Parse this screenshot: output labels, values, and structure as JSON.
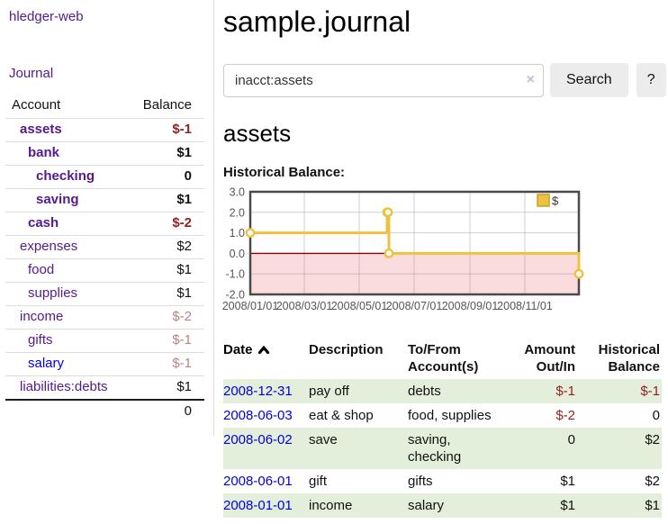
{
  "sidebar": {
    "brand": "hledger-web",
    "journal_link": "Journal",
    "accounts_table": {
      "headers": {
        "account": "Account",
        "balance": "Balance"
      },
      "rows": [
        {
          "account": "assets",
          "balance": "$-1",
          "indent": 1,
          "bold": true,
          "balance_tone": "negative-dark",
          "link_tone": "purple"
        },
        {
          "account": "bank",
          "balance": "$1",
          "indent": 2,
          "bold": true,
          "balance_tone": "normal",
          "link_tone": "purple"
        },
        {
          "account": "checking",
          "balance": "0",
          "indent": 3,
          "bold": true,
          "balance_tone": "normal",
          "link_tone": "purple"
        },
        {
          "account": "saving",
          "balance": "$1",
          "indent": 3,
          "bold": true,
          "balance_tone": "normal",
          "link_tone": "purple"
        },
        {
          "account": "cash",
          "balance": "$-2",
          "indent": 2,
          "bold": true,
          "balance_tone": "negative-dark",
          "link_tone": "purple"
        },
        {
          "account": "expenses",
          "balance": "$2",
          "indent": 1,
          "bold": false,
          "balance_tone": "normal",
          "link_tone": "purple"
        },
        {
          "account": "food",
          "balance": "$1",
          "indent": 2,
          "bold": false,
          "balance_tone": "normal",
          "link_tone": "purple"
        },
        {
          "account": "supplies",
          "balance": "$1",
          "indent": 2,
          "bold": false,
          "balance_tone": "normal",
          "link_tone": "purple"
        },
        {
          "account": "income",
          "balance": "$-2",
          "indent": 1,
          "bold": false,
          "balance_tone": "negative-light",
          "link_tone": "purple"
        },
        {
          "account": "gifts",
          "balance": "$-1",
          "indent": 2,
          "bold": false,
          "balance_tone": "negative-light",
          "link_tone": "purple"
        },
        {
          "account": "salary",
          "balance": "$-1",
          "indent": 2,
          "bold": false,
          "balance_tone": "negative-light",
          "link_tone": "blue"
        },
        {
          "account": "liabilities:debts",
          "balance": "$1",
          "indent": 1,
          "bold": false,
          "balance_tone": "normal",
          "link_tone": "purple"
        }
      ],
      "total": "0"
    }
  },
  "main": {
    "title": "sample.journal",
    "search": {
      "value": "inacct:assets",
      "clear_glyph": "×",
      "clear_icon": "clear-icon",
      "search_button": "Search",
      "help_button": "?"
    },
    "account_heading": "assets",
    "chart_heading": "Historical Balance:"
  },
  "chart_data": {
    "type": "line",
    "title": "Historical Balance:",
    "series": [
      {
        "name": "$",
        "color": "#edc240",
        "steps": true,
        "points": [
          {
            "date": "2008-01-01",
            "value": 1
          },
          {
            "date": "2008-06-01",
            "value": 2
          },
          {
            "date": "2008-06-02",
            "value": 2
          },
          {
            "date": "2008-06-03",
            "value": 0
          },
          {
            "date": "2008-12-31",
            "value": -1
          }
        ]
      }
    ],
    "x_axis": {
      "tick_labels": [
        "2008/01/01",
        "2008/03/01",
        "2008/05/01",
        "2008/07/01",
        "2008/09/01",
        "2008/11/01"
      ],
      "range": [
        "2008-01-01",
        "2008-12-31"
      ]
    },
    "y_axis": {
      "tick_labels": [
        "3.0",
        "2.0",
        "1.0",
        "0.0",
        "-1.0",
        "-2.0"
      ],
      "tick_values": [
        3,
        2,
        1,
        0,
        -1,
        -2
      ],
      "range": [
        -2,
        3
      ]
    },
    "legend": {
      "label": "$",
      "position": "top-right",
      "swatch_color": "#edc240"
    },
    "grid": true,
    "styles": {
      "negative_region_fill": "#fbdcdc",
      "zero_line_color": "#8b0000",
      "grid_color": "rgba(150,150,150,0.45)",
      "border_color": "#4a4a4a",
      "axis_label_color": "#555555"
    }
  },
  "transactions": {
    "headers": [
      "Date",
      "Description",
      "To/From Account(s)",
      "Amount Out/In",
      "Historical Balance"
    ],
    "sort": {
      "column": "Date",
      "icon": "caret-up-icon"
    },
    "rows": [
      {
        "date": "2008-12-31",
        "description": "pay off",
        "accounts": "debts",
        "amount": "$-1",
        "amount_tone": "negative",
        "balance": "$-1",
        "balance_tone": "negative"
      },
      {
        "date": "2008-06-03",
        "description": "eat & shop",
        "accounts": "food, supplies",
        "amount": "$-2",
        "amount_tone": "negative",
        "balance": "0",
        "balance_tone": "normal"
      },
      {
        "date": "2008-06-02",
        "description": "save",
        "accounts": "saving, checking",
        "amount": "0",
        "amount_tone": "normal",
        "balance": "$2",
        "balance_tone": "normal"
      },
      {
        "date": "2008-06-01",
        "description": "gift",
        "accounts": "gifts",
        "amount": "$1",
        "amount_tone": "normal",
        "balance": "$2",
        "balance_tone": "normal"
      },
      {
        "date": "2008-01-01",
        "description": "income",
        "accounts": "salary",
        "amount": "$1",
        "amount_tone": "normal",
        "balance": "$1",
        "balance_tone": "normal"
      }
    ]
  },
  "colors": {
    "link_purple": "#551a8b",
    "link_blue": "#0000e0",
    "negative_dark": "#941f1f",
    "negative_light": "#c08181",
    "row_stripe_green": "#e3efda",
    "button_bg": "#ececec",
    "series_yellow": "#edc240"
  }
}
